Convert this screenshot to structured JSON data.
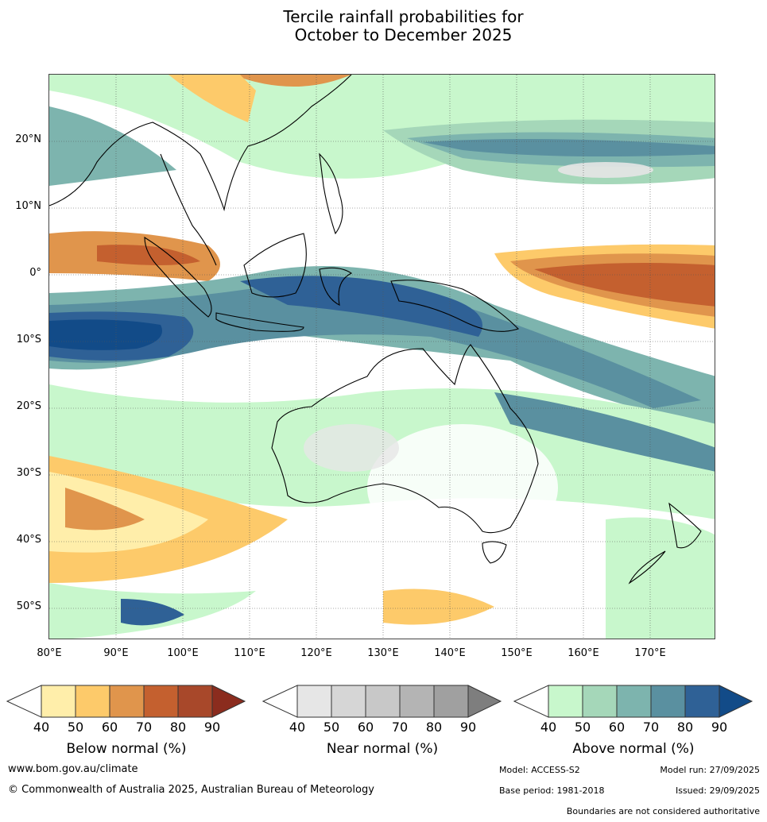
{
  "title": {
    "line1": "Tercile rainfall probabilities for",
    "line2": "October to December 2025"
  },
  "map": {
    "lat_labels": [
      "20°N",
      "10°N",
      "0°",
      "10°S",
      "20°S",
      "30°S",
      "40°S",
      "50°S"
    ],
    "lon_labels": [
      "80°E",
      "90°E",
      "100°E",
      "110°E",
      "120°E",
      "130°E",
      "140°E",
      "150°E",
      "160°E",
      "170°E"
    ]
  },
  "colorbars": {
    "below": {
      "label": "Below normal (%)",
      "ticks": [
        "40",
        "50",
        "60",
        "70",
        "80",
        "90"
      ],
      "colors": [
        "#ffeeaa",
        "#fdca6a",
        "#e0954c",
        "#c4602f",
        "#a8482a",
        "#8b2c1e"
      ]
    },
    "near": {
      "label": "Near normal (%)",
      "ticks": [
        "40",
        "50",
        "60",
        "70",
        "80",
        "90"
      ],
      "colors": [
        "#e6e6e6",
        "#d6d6d6",
        "#c8c8c8",
        "#b4b4b4",
        "#a0a0a0",
        "#7e7e7e"
      ]
    },
    "above": {
      "label": "Above normal (%)",
      "ticks": [
        "40",
        "50",
        "60",
        "70",
        "80",
        "90"
      ],
      "colors": [
        "#c8f7cc",
        "#a5d7b9",
        "#7db4ae",
        "#5a90a0",
        "#2f6196",
        "#124b88"
      ]
    }
  },
  "footer": {
    "website": "www.bom.gov.au/climate",
    "copyright": "© Commonwealth of Australia 2025, Australian Bureau of Meteorology",
    "model": "Model: ACCESS-S2",
    "model_run": "Model run: 27/09/2025",
    "base_period": "Base period: 1981-2018",
    "issued": "Issued: 29/09/2025",
    "disclaimer": "Boundaries are not considered authoritative"
  }
}
